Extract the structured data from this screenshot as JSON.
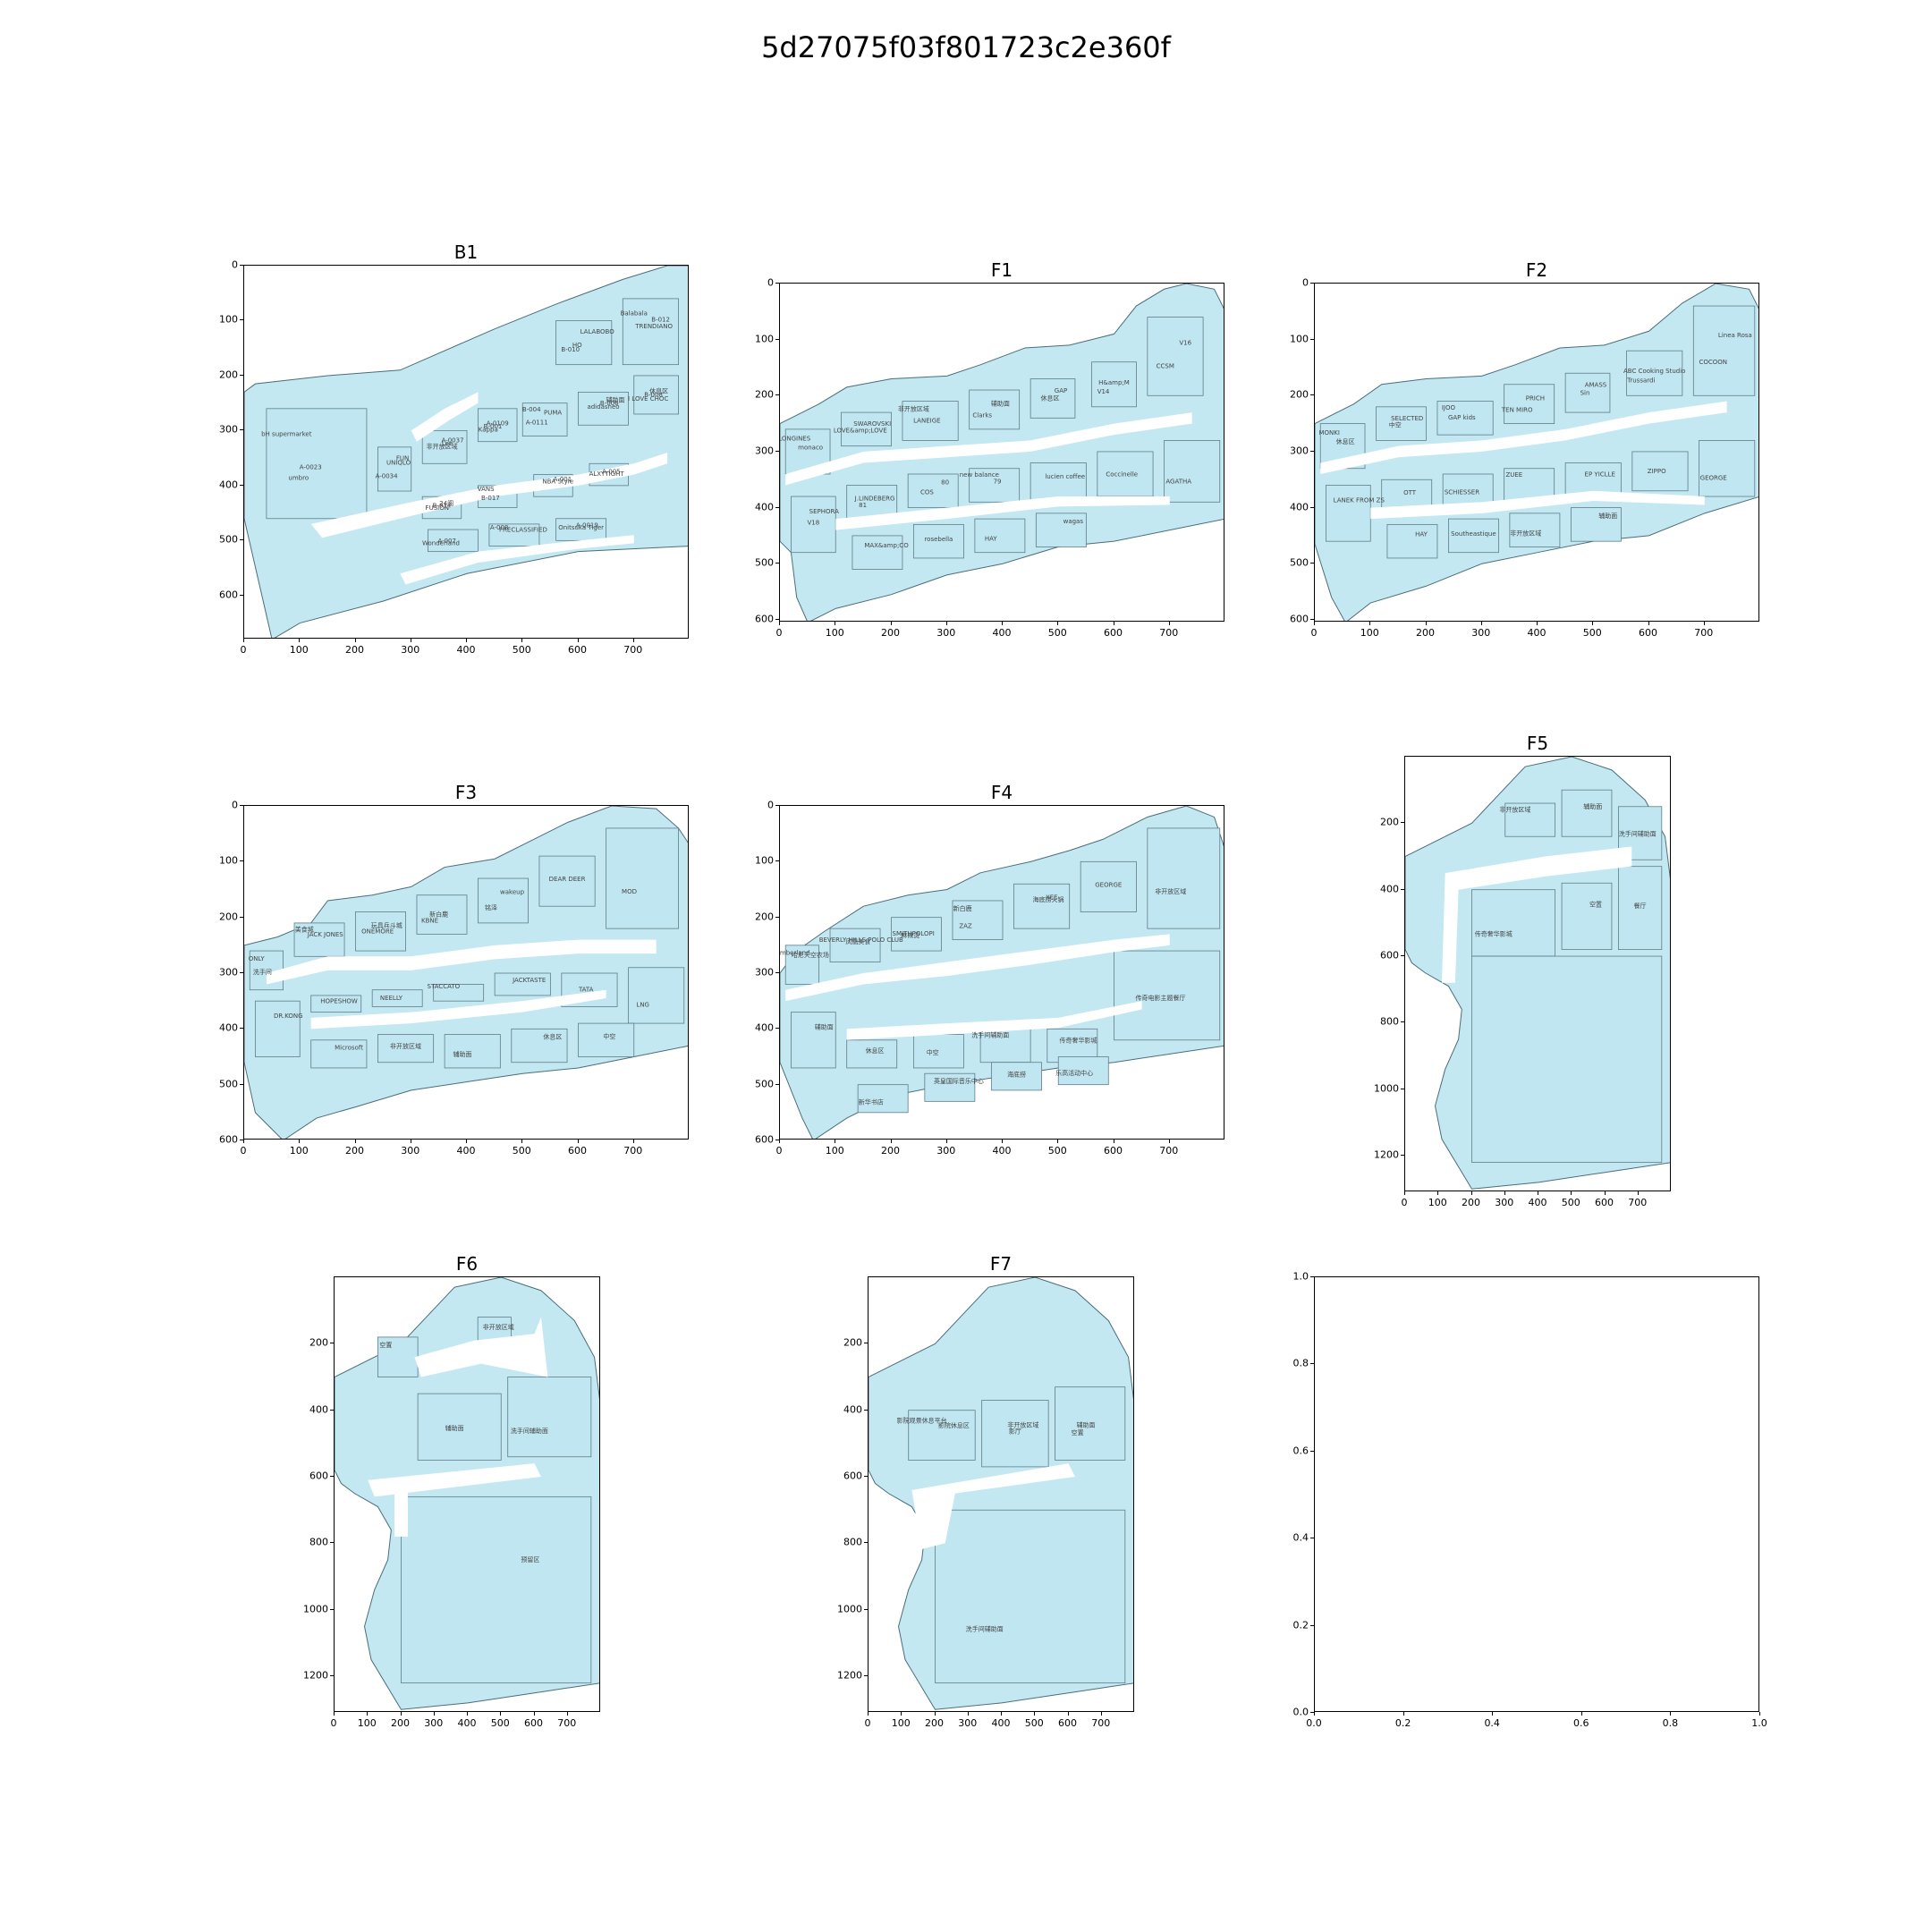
{
  "figure": {
    "title": "5d27075f03f801723c2e360f"
  },
  "colors": {
    "fill": "#c3e8f2",
    "edge": "#4a6e7a",
    "walkway": "#ffffff"
  },
  "panels": [
    {
      "id": "B1",
      "title": "B1",
      "xticks": [
        "0",
        "100",
        "200",
        "300",
        "400",
        "500",
        "600",
        "700"
      ],
      "yticks": [
        "0",
        "100",
        "200",
        "300",
        "400",
        "500",
        "600"
      ],
      "labels": [
        "bH supermarket",
        "UNIQLO",
        "非开放区域",
        "Kappa",
        "PUMA",
        "adidasneo",
        "I LOVE CHOC",
        "LALABOBO",
        "TRENDIANO",
        "FUSION",
        "VANS",
        "NBA Style",
        "ALXYTIGHT",
        "Wonderland",
        "FRECLASSIFIED",
        "Onitsuka Tiger",
        "umbro",
        "FUN",
        "Lee",
        "B-001",
        "B-004",
        "B-006",
        "B-008",
        "B-010",
        "B-012",
        "B-014",
        "B-017",
        "A-001",
        "A-005",
        "A-007",
        "A-008",
        "A-0019",
        "A-0023",
        "A-0034",
        "A-0037",
        "A-0109",
        "A-0111",
        "辅助面",
        "休息区",
        "HO",
        "Balabala",
        "24阁"
      ]
    },
    {
      "id": "F1",
      "title": "F1",
      "xticks": [
        "0",
        "100",
        "200",
        "300",
        "400",
        "500",
        "600",
        "700"
      ],
      "yticks": [
        "0",
        "100",
        "200",
        "300",
        "400",
        "500",
        "600"
      ],
      "labels": [
        "LONGINES",
        "SWAROVSKI",
        "LANEIGE",
        "Clarks",
        "GAP",
        "H&amp;M",
        "CCSM",
        "SEPHORA",
        "J.LINDEBERG",
        "COS",
        "new balance",
        "lucien coffee",
        "Coccinelle",
        "AGATHA",
        "MAX&amp;CO",
        "rosebella",
        "HAY",
        "wagas",
        "monaco",
        "LOVE&amp;LOVE",
        "非开放区域",
        "辅助面",
        "休息区",
        "V14",
        "V16",
        "V18",
        "81",
        "80",
        "79"
      ]
    },
    {
      "id": "F2",
      "title": "F2",
      "xticks": [
        "0",
        "100",
        "200",
        "300",
        "400",
        "500",
        "600",
        "700"
      ],
      "yticks": [
        "0",
        "100",
        "200",
        "300",
        "400",
        "500",
        "600"
      ],
      "labels": [
        "MONKI",
        "SELECTED",
        "GAP kids",
        "TEN MIRO",
        "AMASS",
        "ABC Cooking Studio",
        "COCOON",
        "LANEK FROM ZS",
        "OTT",
        "SCHIESSER",
        "ZUEE",
        "EP YICLLE",
        "ZIPPO",
        "GEORGE",
        "HAY",
        "Southeastique",
        "非开放区域",
        "辅助面",
        "休息区",
        "中空",
        "IJOO",
        "PRICH",
        "Sin",
        "Trussardi",
        "Linea Rosa"
      ]
    },
    {
      "id": "F3",
      "title": "F3",
      "xticks": [
        "0",
        "100",
        "200",
        "300",
        "400",
        "500",
        "600",
        "700"
      ],
      "yticks": [
        "0",
        "100",
        "200",
        "300",
        "400",
        "500",
        "600"
      ],
      "labels": [
        "ONLY",
        "JACK JONES",
        "ONEMORE",
        "KBNE",
        "wakeup",
        "DEAR DEER",
        "MOD",
        "DR.KONG",
        "HOPESHOW",
        "NEELLY",
        "STACCATO",
        "JACKTASTE",
        "TATA",
        "LNG",
        "Microsoft",
        "非开放区域",
        "辅助面",
        "休息区",
        "中空",
        "洗手间",
        "美食城",
        "玩具兵斗城",
        "新白鹿",
        "铭泽"
      ]
    },
    {
      "id": "F4",
      "title": "F4",
      "xticks": [
        "0",
        "100",
        "200",
        "300",
        "400",
        "500",
        "600",
        "700"
      ],
      "yticks": [
        "0",
        "100",
        "200",
        "300",
        "400",
        "500",
        "600"
      ],
      "labels": [
        "Timberland",
        "BEVERLY HILLS POLO CLUB",
        "SMITHPOLOPI",
        "ZAZ",
        "XEE",
        "GEORGE",
        "非开放区域",
        "辅助面",
        "休息区",
        "中空",
        "洗手间辅助面",
        "传奇奢华影城",
        "传奇电影主题餐厅",
        "新华书店",
        "英皇国际音乐中心",
        "海底捞",
        "乐高活动中心",
        "哈尼天空农场",
        "凤凰美食",
        "麻辣烫",
        "新白鹿",
        "海底捞火锅"
      ]
    },
    {
      "id": "F5",
      "title": "F5",
      "xticks": [
        "0",
        "100",
        "200",
        "300",
        "400",
        "500",
        "600",
        "700"
      ],
      "yticks": [
        "200",
        "400",
        "600",
        "800",
        "1000",
        "1200"
      ],
      "labels": [
        "非开放区域",
        "辅助面",
        "洗手间辅助面",
        "传奇奢华影城",
        "空置",
        "餐厅"
      ]
    },
    {
      "id": "F6",
      "title": "F6",
      "xticks": [
        "0",
        "100",
        "200",
        "300",
        "400",
        "500",
        "600",
        "700"
      ],
      "yticks": [
        "200",
        "400",
        "600",
        "800",
        "1000",
        "1200"
      ],
      "labels": [
        "空置",
        "非开放区域",
        "辅助面",
        "洗手间辅助面",
        "预留区"
      ]
    },
    {
      "id": "F7",
      "title": "F7",
      "xticks": [
        "0",
        "100",
        "200",
        "300",
        "400",
        "500",
        "600",
        "700"
      ],
      "yticks": [
        "200",
        "400",
        "600",
        "800",
        "1000",
        "1200"
      ],
      "labels": [
        "影院观景休息平台",
        "非开放区域",
        "辅助面",
        "洗手间辅助面",
        "影院休息区",
        "影厅",
        "空置"
      ]
    },
    {
      "id": "empty",
      "title": "",
      "xticks": [
        "0.0",
        "0.2",
        "0.4",
        "0.6",
        "0.8",
        "1.0"
      ],
      "yticks": [
        "0.0",
        "0.2",
        "0.4",
        "0.6",
        "0.8",
        "1.0"
      ],
      "labels": []
    }
  ]
}
